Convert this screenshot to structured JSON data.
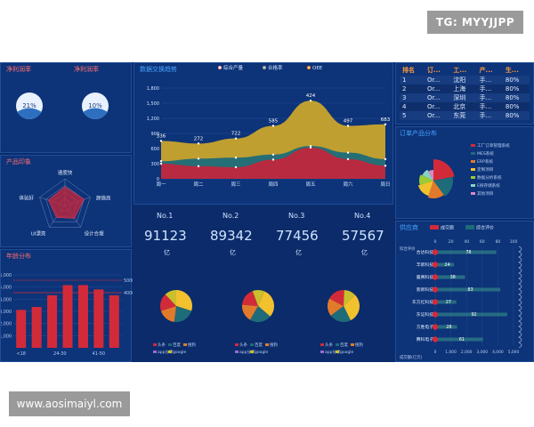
{
  "watermarks": {
    "top": "TG: MYYJJPP",
    "bottom": "www.aosimaiyl.com"
  },
  "net_profit": {
    "left_title": "净利润率",
    "right_title": "净利润率",
    "values": [
      "21%",
      "10%"
    ]
  },
  "product_radar": {
    "title": "产品印象",
    "labels": [
      "速度快",
      "颜值高",
      "设计合理",
      "UI漂亮",
      "体验好"
    ],
    "values": [
      0.7,
      0.75,
      0.6,
      0.55,
      0.65
    ]
  },
  "age_chart": {
    "title": "年龄分布",
    "left_ticks": [
      "6,000",
      "5,000",
      "4,000",
      "3,000",
      "2,000",
      "1,000"
    ],
    "right_ticks": [
      "5000",
      "4000"
    ],
    "x_labels": [
      "<18",
      "24-30",
      "41-50"
    ],
    "values": [
      0.52,
      0.56,
      0.72,
      0.86,
      0.86,
      0.8,
      0.72
    ],
    "colors": {
      "bar": "#d32a3a",
      "line": "#d32a3a"
    }
  },
  "traffic_chart": {
    "title": "数据交换趋势",
    "legend": [
      "综合产量",
      "合格率",
      "OEE"
    ],
    "y_ticks": [
      "1,800",
      "1,500",
      "1,200",
      "900",
      "600",
      "300",
      "0"
    ],
    "categories": [
      "周一",
      "周二",
      "周三",
      "周四",
      "周五",
      "周六",
      "周日"
    ],
    "top_labels": [
      "336",
      "272",
      "722",
      "585",
      "424",
      "497",
      "683"
    ],
    "series": [
      {
        "name": "综合产量",
        "values": [
          300,
          250,
          230,
          380,
          620,
          390,
          260
        ],
        "color": "#c0263d"
      },
      {
        "name": "合格率",
        "values": [
          350,
          400,
          420,
          480,
          650,
          520,
          390
        ],
        "color": "#1e6b7a"
      },
      {
        "name": "OEE",
        "values": [
          750,
          700,
          800,
          1050,
          1550,
          1050,
          1080
        ],
        "color": "#c9a52b"
      }
    ],
    "ylim": [
      0,
      1800
    ]
  },
  "rankings": [
    {
      "no": "No.1",
      "value": "91123",
      "unit": "亿"
    },
    {
      "no": "No.2",
      "value": "89342",
      "unit": "亿"
    },
    {
      "no": "No.3",
      "value": "77456",
      "unit": "亿"
    },
    {
      "no": "No.4",
      "value": "57567",
      "unit": "亿"
    }
  ],
  "pies": {
    "legend": [
      "头条",
      "百度",
      "搜狗",
      "app分享",
      "google"
    ],
    "legend_colors": [
      "#d32a3a",
      "#1e6b7a",
      "#e27a2b",
      "#9a6bd1",
      "#c9c02b"
    ],
    "slices": [
      0.3,
      0.22,
      0.18,
      0.18,
      0.12
    ],
    "colors": [
      "#f2c12e",
      "#1e6b7a",
      "#e27a2b",
      "#d32a3a",
      "#c9c02b"
    ]
  },
  "table": {
    "headers": [
      "排名",
      "订...",
      "工...",
      "产...",
      "生..."
    ],
    "rows": [
      [
        "1",
        "Or...",
        "沈阳",
        "手...",
        "80%"
      ],
      [
        "2",
        "Or...",
        "上海",
        "手...",
        "80%"
      ],
      [
        "3",
        "Or...",
        "深圳",
        "手...",
        "80%"
      ],
      [
        "4",
        "Or...",
        "北京",
        "手...",
        "80%"
      ],
      [
        "5",
        "Or...",
        "东莞",
        "手...",
        "80%"
      ]
    ]
  },
  "order_distribution": {
    "title": "订单产品分布",
    "legend": [
      "工厂订单管理系统",
      "MES系统",
      "ERP系统",
      "定制项目",
      "数据分析系统",
      "E探存储系统",
      "其他项目"
    ],
    "colors": [
      "#d32a3a",
      "#1e6b7a",
      "#e27a2b",
      "#f2c12e",
      "#9acd32",
      "#8ad1c2",
      "#d88ac2"
    ],
    "slices": [
      0.22,
      0.18,
      0.15,
      0.15,
      0.12,
      0.1,
      0.08
    ]
  },
  "suppliers": {
    "title": "供应商",
    "legend": [
      "成交额",
      "综合评价"
    ],
    "top_ticks": [
      "0",
      "20",
      "40",
      "60",
      "80",
      "100"
    ],
    "bottom_ticks": [
      "0",
      "1,000",
      "2,000",
      "3,000",
      "4,000",
      "5,000"
    ],
    "names": [
      "合达科技",
      "丰新科技",
      "露赛科技",
      "索新科技",
      "东方红科技",
      "东证科技",
      "方胜电子",
      "腾科电子"
    ],
    "labels": [
      "78",
      "24",
      "38",
      "83",
      "27",
      "92",
      "28",
      "61"
    ],
    "values": [
      78,
      24,
      38,
      83,
      27,
      92,
      28,
      61
    ],
    "first_label": "综合评价",
    "axis_label": "成交额(亿元)"
  }
}
